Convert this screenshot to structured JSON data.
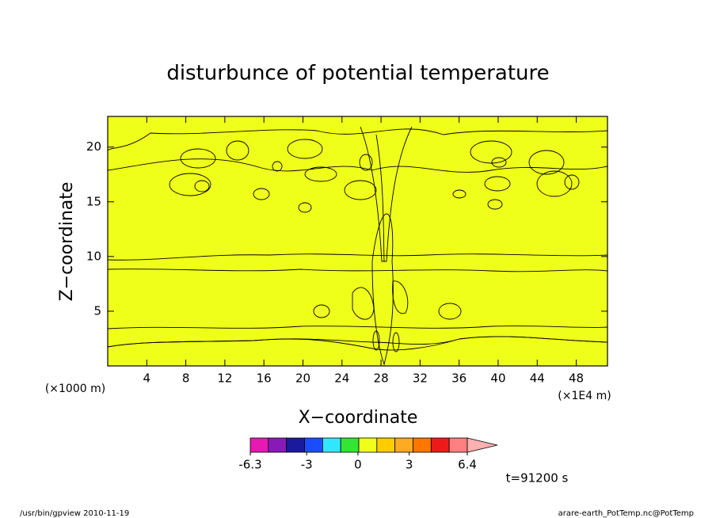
{
  "chart_data": {
    "type": "contour",
    "title": "disturbunce of potential temperature",
    "xlabel": "X−coordinate",
    "ylabel": "Z−coordinate",
    "x_unit": "(×1E4 m)",
    "y_unit": "(×1000 m)",
    "xlim": [
      0,
      51.2
    ],
    "xticks": [
      4,
      8,
      12,
      16,
      20,
      24,
      28,
      32,
      36,
      40,
      44,
      48
    ],
    "ylim": [
      0,
      22.8
    ],
    "yticks": [
      5,
      10,
      15,
      20
    ],
    "colorbar": {
      "clim": [
        -6.3,
        6.4
      ],
      "ticks": [
        -6.3,
        -3,
        0,
        3,
        6.4
      ],
      "colors": [
        "#e619b3",
        "#8a1ab8",
        "#1a1a9e",
        "#1a4dff",
        "#33e6ff",
        "#33e633",
        "#f0ff1a",
        "#ffcc00",
        "#ffaa22",
        "#ff7700",
        "#ee1a1a",
        "#ff8080",
        "#ffb0b0"
      ]
    },
    "annotation": "t=91200 s"
  },
  "footer": {
    "left": "/usr/bin/gpview   2010-11-19",
    "right": "arare-earth_PotTemp.nc@PotTemp"
  }
}
